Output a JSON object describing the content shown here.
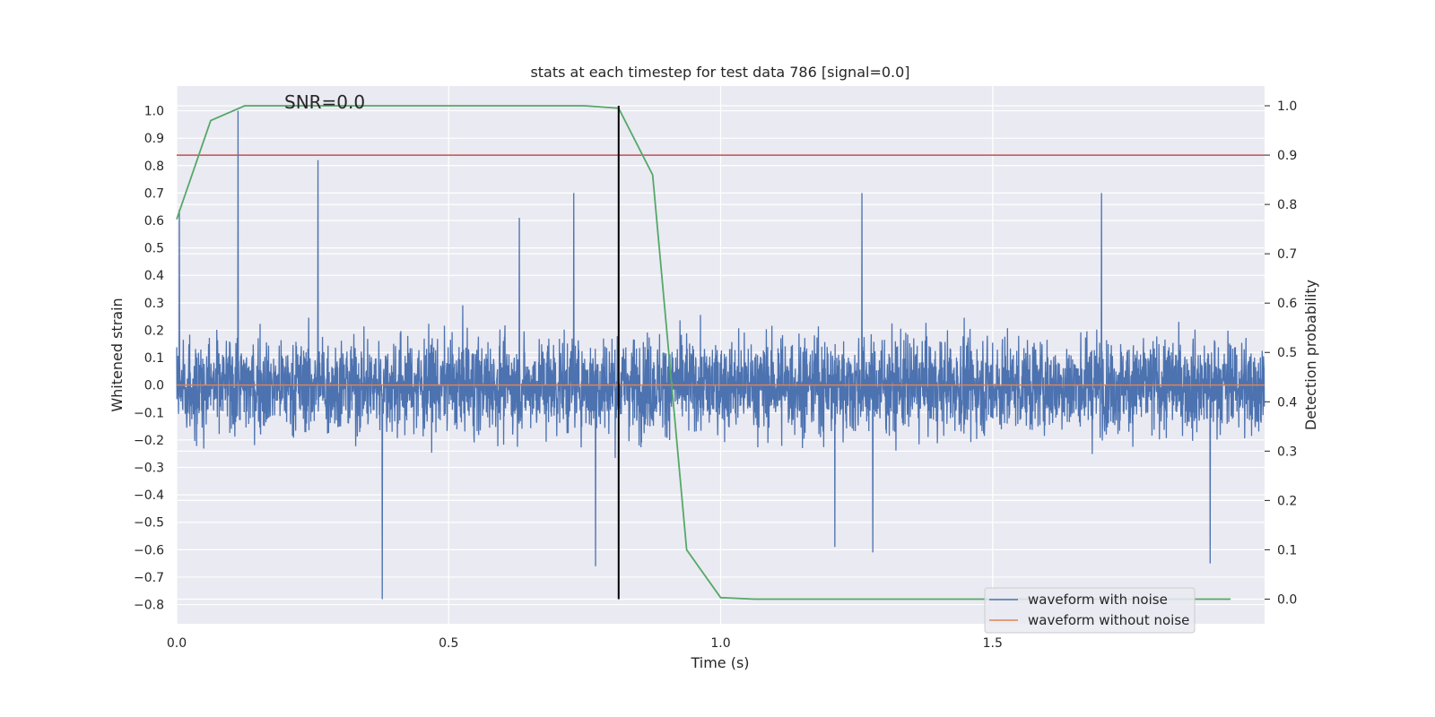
{
  "chart_data": {
    "type": "line",
    "title": "stats at each timestep for test data 786 [signal=0.0]",
    "annotation": "SNR=0.0",
    "xlabel": "Time (s)",
    "ylabel_left": "Whitened strain",
    "ylabel_right": "Detection probability",
    "xlim": [
      0.0,
      2.0
    ],
    "ylim_left": [
      -0.87,
      1.09
    ],
    "ylim_right": [
      -0.05,
      1.04
    ],
    "xticks": [
      "0.0",
      "0.5",
      "1.0",
      "1.5"
    ],
    "xtick_values": [
      0.0,
      0.5,
      1.0,
      1.5
    ],
    "yticks_left": [
      "−0.8",
      "−0.7",
      "−0.6",
      "−0.5",
      "−0.4",
      "−0.3",
      "−0.2",
      "−0.1",
      "0.0",
      "0.1",
      "0.2",
      "0.3",
      "0.4",
      "0.5",
      "0.6",
      "0.7",
      "0.8",
      "0.9",
      "1.0"
    ],
    "ytick_left_values": [
      -0.8,
      -0.7,
      -0.6,
      -0.5,
      -0.4,
      -0.3,
      -0.2,
      -0.1,
      0.0,
      0.1,
      0.2,
      0.3,
      0.4,
      0.5,
      0.6,
      0.7,
      0.8,
      0.9,
      1.0
    ],
    "yticks_right": [
      "0.0",
      "0.1",
      "0.2",
      "0.3",
      "0.4",
      "0.5",
      "0.6",
      "0.7",
      "0.8",
      "0.9",
      "1.0"
    ],
    "ytick_right_values": [
      0.0,
      0.1,
      0.2,
      0.3,
      0.4,
      0.5,
      0.6,
      0.7,
      0.8,
      0.9,
      1.0
    ],
    "grid": true,
    "legend_position": "bottom-right",
    "series": [
      {
        "name": "waveform with noise",
        "axis": "left",
        "color": "#4c72b0",
        "kind": "noise",
        "sample_rate": 2048,
        "duration": 2.0,
        "std": 0.17,
        "range": [
          -0.78,
          1.0
        ],
        "spikes": [
          [
            0.113,
            1.0
          ],
          [
            0.26,
            0.82
          ],
          [
            0.378,
            -0.78
          ],
          [
            0.005,
            0.64
          ],
          [
            0.63,
            0.61
          ],
          [
            0.73,
            0.7
          ],
          [
            0.77,
            -0.66
          ],
          [
            1.26,
            0.7
          ],
          [
            1.7,
            0.7
          ],
          [
            1.9,
            -0.65
          ],
          [
            1.21,
            -0.59
          ],
          [
            1.28,
            -0.61
          ]
        ]
      },
      {
        "name": "waveform without noise",
        "axis": "left",
        "color": "#dd8452",
        "x": [
          0.0,
          2.0
        ],
        "y": [
          0.0,
          0.0
        ]
      },
      {
        "name": "detection probability",
        "axis": "right",
        "color": "#55a868",
        "x": [
          0.0,
          0.0625,
          0.125,
          0.1875,
          0.25,
          0.3125,
          0.375,
          0.4375,
          0.5,
          0.5625,
          0.625,
          0.6875,
          0.75,
          0.8125,
          0.875,
          0.9375,
          1.0,
          1.0625,
          1.125,
          1.1875,
          1.25,
          1.3125,
          1.375,
          1.4375,
          1.5,
          1.5625,
          1.625,
          1.6875,
          1.75,
          1.8125,
          1.875,
          1.9375
        ],
        "y": [
          0.77,
          0.97,
          1.0,
          1.0,
          1.0,
          1.0,
          1.0,
          1.0,
          1.0,
          1.0,
          1.0,
          1.0,
          1.0,
          0.995,
          0.86,
          0.1,
          0.003,
          0.0,
          0.0,
          0.0,
          0.0,
          0.0,
          0.0,
          0.0,
          0.0,
          0.0,
          0.0,
          0.0,
          0.0,
          0.0,
          0.0,
          0.0
        ]
      }
    ],
    "threshold": {
      "axis": "right",
      "value": 0.9,
      "color": "#c44e52"
    },
    "marker_line": {
      "x": 0.8125,
      "axis": "right",
      "from": 0.0,
      "to": 1.0,
      "color": "#000000"
    }
  }
}
